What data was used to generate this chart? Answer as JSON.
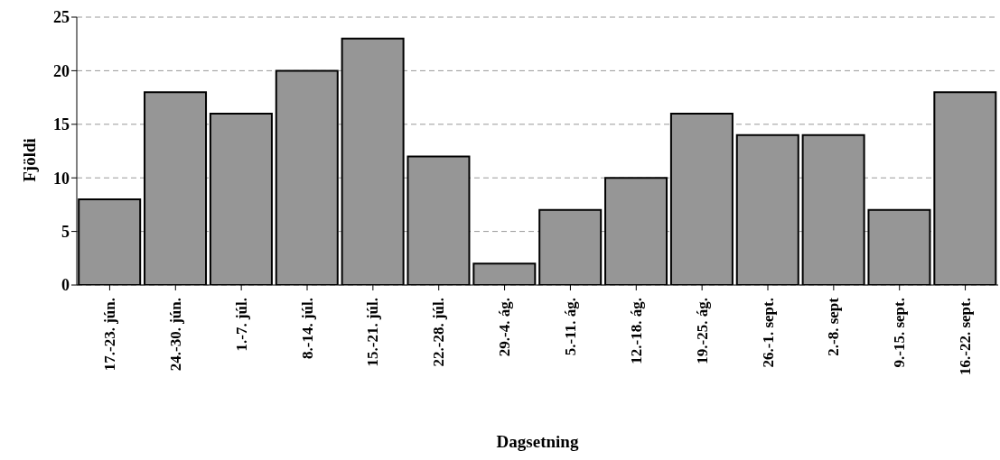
{
  "chart_data": {
    "type": "bar",
    "xlabel": "Dagsetning",
    "ylabel": "Fjöldi",
    "categories": [
      "17.-23. jún.",
      "24.-30. jún.",
      "1.-7. júl.",
      "8.-14. júl.",
      "15.-21. júl.",
      "22.-28. júl.",
      "29.-4. ág.",
      "5.-11. ág.",
      "12.-18. ág.",
      "19.-25. ág.",
      "26.-1. sept.",
      "2.-8. sept",
      "9.-15. sept.",
      "16.-22. sept."
    ],
    "values": [
      8,
      18,
      16,
      20,
      23,
      12,
      2,
      7,
      10,
      16,
      14,
      14,
      7,
      18
    ],
    "color": "#969696",
    "ylim": [
      0,
      25
    ],
    "yticks": [
      0,
      5,
      10,
      15,
      20,
      25
    ],
    "grid": "y",
    "legend": false
  }
}
